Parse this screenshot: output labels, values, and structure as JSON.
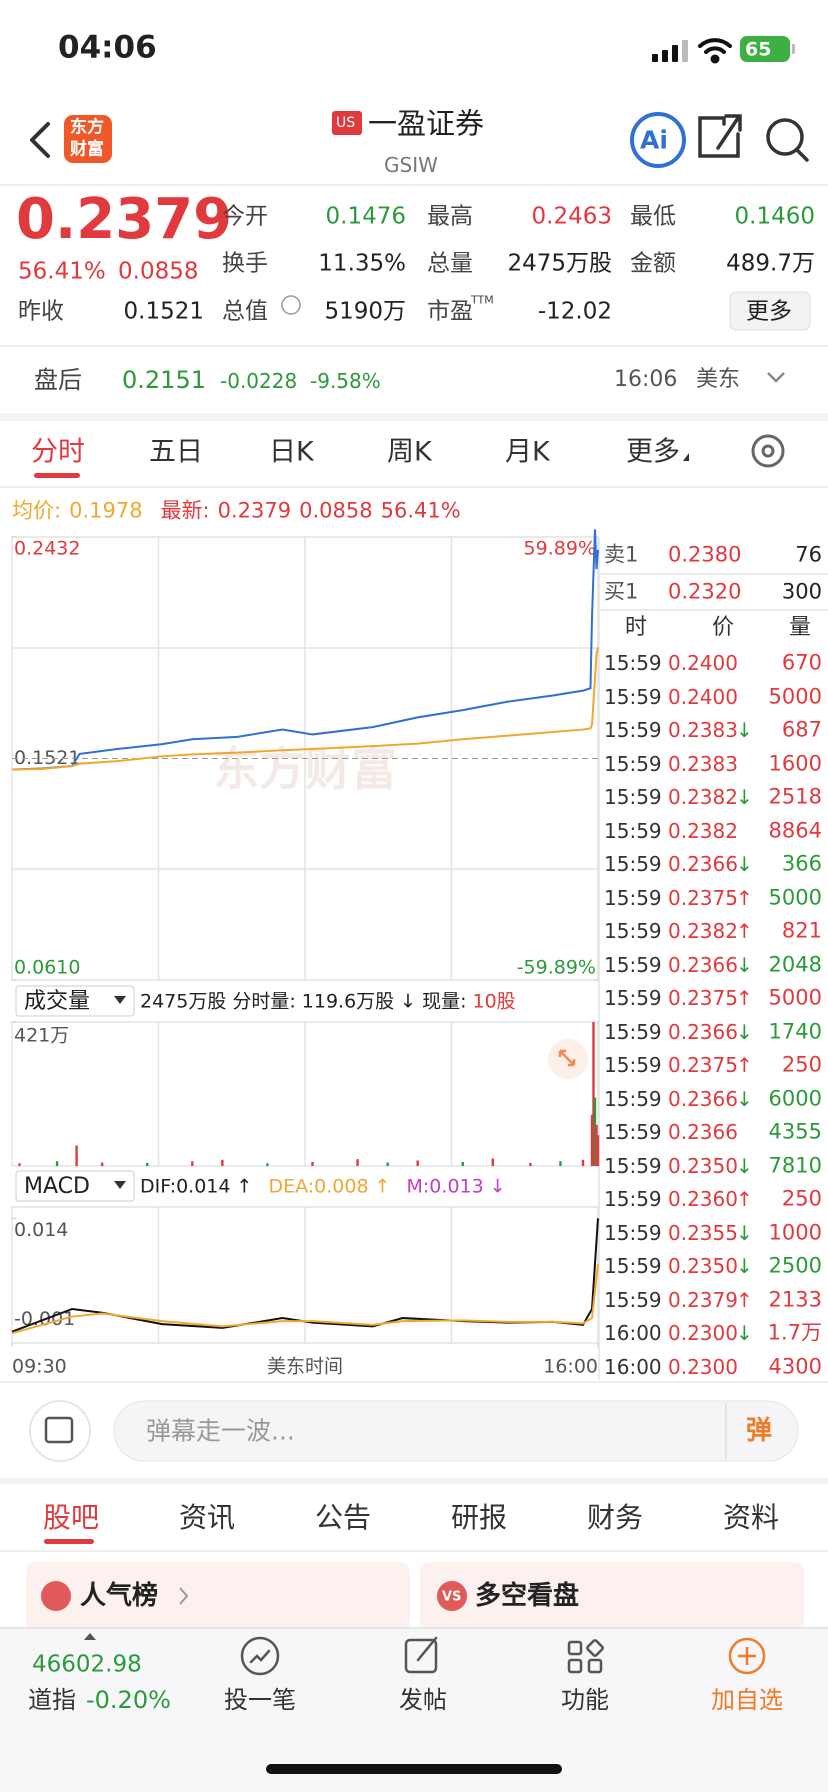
{
  "status_bar": {
    "time": "04:06",
    "battery": "65"
  },
  "header": {
    "logo": [
      "东方",
      "财富"
    ],
    "market": "US",
    "name": "一盈证券",
    "code": "GSIW",
    "ai": "Ai"
  },
  "quote": {
    "price": "0.2379",
    "change_pct": "56.41%",
    "change": "0.0858",
    "fields": [
      {
        "label": "今开",
        "value": "0.1476",
        "color": "#2a9a3a"
      },
      {
        "label": "最高",
        "value": "0.2463",
        "color": "#e0393e"
      },
      {
        "label": "最低",
        "value": "0.1460",
        "color": "#2a9a3a"
      },
      {
        "label": "换手",
        "value": "11.35%",
        "color": "#222222"
      },
      {
        "label": "总量",
        "value": "2475万股",
        "color": "#222222"
      },
      {
        "label": "金额",
        "value": "489.7万",
        "color": "#222222"
      },
      {
        "label": "昨收",
        "value": "0.1521",
        "color": "#222222"
      },
      {
        "label": "总值",
        "value": "5190万",
        "color": "#222222"
      },
      {
        "label": "市盈",
        "sup": "TTM",
        "value": "-12.02",
        "color": "#222222"
      }
    ],
    "more": "更多"
  },
  "after_hours": {
    "label": "盘后",
    "price": "0.2151",
    "change": "-0.0228",
    "pct": "-9.58%",
    "time": "16:06",
    "market": "美东"
  },
  "tabs": [
    "分时",
    "五日",
    "日K",
    "周K",
    "月K",
    "更多"
  ],
  "intraday_info": {
    "avg_label": "均价:",
    "avg": "0.1978",
    "last_label": "最新:",
    "last": "0.2379",
    "change": "0.0858",
    "pct": "56.41%"
  },
  "volume_bar": {
    "selector": "成交量",
    "total": "2475万股",
    "minute_label": "分时量:",
    "minute": "119.6万股",
    "arrow": "↓",
    "now_label": "现量:",
    "now": "10股"
  },
  "macd_bar": {
    "selector": "MACD",
    "dif": "DIF:0.014 ↑",
    "dea": "DEA:0.008 ↑",
    "m": "M:0.013 ↓"
  },
  "chart_data": [
    {
      "type": "line",
      "watermark": "东方财富",
      "x": [
        0,
        20,
        40,
        45,
        70,
        100,
        120,
        150,
        180,
        200,
        240,
        270,
        300,
        330,
        360,
        380,
        385,
        386,
        388,
        389,
        390
      ],
      "xlim": [
        0,
        390
      ],
      "ylim": [
        0.061,
        0.2432
      ],
      "yticks": [
        {
          "value": 0.2432,
          "label": "0.2432"
        },
        {
          "value": 0.1521,
          "label": "0.1521"
        },
        {
          "value": 0.061,
          "label": "0.0610"
        }
      ],
      "y2lim": [
        -59.89,
        59.89
      ],
      "y2ticks": [
        {
          "value": 59.89,
          "label": "59.89%"
        },
        {
          "value": -59.89,
          "label": "-59.89%"
        }
      ],
      "series": [
        {
          "color": "#2f6fd6",
          "values": [
            0.1476,
            0.148,
            0.149,
            0.154,
            0.156,
            0.158,
            0.16,
            0.161,
            0.164,
            0.162,
            0.165,
            0.169,
            0.172,
            0.1755,
            0.178,
            0.18,
            0.181,
            0.21,
            0.2463,
            0.23,
            0.2379
          ]
        },
        {
          "color": "#f0a830",
          "values": [
            0.1476,
            0.1478,
            0.149,
            0.15,
            0.151,
            0.153,
            0.1538,
            0.1545,
            0.1555,
            0.156,
            0.1572,
            0.1582,
            0.16,
            0.1615,
            0.163,
            0.164,
            0.1645,
            0.166,
            0.185,
            0.195,
            0.1978
          ]
        }
      ]
    },
    {
      "type": "bar",
      "x": [
        5,
        30,
        43,
        60,
        90,
        120,
        140,
        170,
        200,
        230,
        250,
        270,
        300,
        320,
        345,
        365,
        380,
        386,
        387,
        388,
        389,
        390
      ],
      "xlim": [
        0,
        390
      ],
      "values": [
        8,
        14,
        60,
        10,
        9,
        14,
        18,
        8,
        12,
        20,
        10,
        16,
        12,
        22,
        9,
        14,
        18,
        150,
        421,
        200,
        120,
        90
      ],
      "colors": [
        "#e0393e",
        "#2a9a3a",
        "#e0393e",
        "#e0393e",
        "#2a9a3a",
        "#e0393e",
        "#e0393e",
        "#2a9a3a",
        "#e0393e",
        "#e0393e",
        "#2a9a3a",
        "#e0393e",
        "#2a9a3a",
        "#e0393e",
        "#e0393e",
        "#2a9a3a",
        "#e0393e",
        "#e0393e",
        "#e0393e",
        "#2a9a3a",
        "#e0393e",
        "#e0393e"
      ],
      "ylim": [
        0,
        421
      ],
      "yticks": [
        {
          "value": 421,
          "label": "421万"
        }
      ]
    },
    {
      "type": "line",
      "x": [
        0,
        40,
        60,
        100,
        140,
        180,
        200,
        240,
        260,
        300,
        330,
        360,
        380,
        386,
        390
      ],
      "xlim": [
        0,
        390
      ],
      "xticks": [
        {
          "value": 0,
          "label": "09:30"
        },
        {
          "value": 390,
          "label": "16:00"
        }
      ],
      "xlabel": "美东时间",
      "ylim": [
        -0.0025,
        0.0155
      ],
      "yticks": [
        0.014,
        -0.001
      ],
      "series": [
        {
          "color": "#111111",
          "values": [
            -0.001,
            0.002,
            0.0015,
            0.0,
            -0.0005,
            0.0008,
            0.0002,
            -0.0003,
            0.0008,
            0.0004,
            0.0002,
            0.0003,
            -0.0001,
            0.002,
            0.014
          ]
        },
        {
          "color": "#f0a830",
          "values": [
            -0.0012,
            0.001,
            0.0014,
            0.0004,
            -0.0003,
            0.0004,
            0.0004,
            -0.0001,
            0.0004,
            0.0005,
            0.0003,
            0.0003,
            0.0001,
            0.0008,
            0.008
          ]
        }
      ]
    }
  ],
  "order_book": {
    "asks": [
      {
        "label": "卖1",
        "price": "0.2380",
        "qty": "76"
      }
    ],
    "bids": [
      {
        "label": "买1",
        "price": "0.2320",
        "qty": "300"
      }
    ],
    "headers": [
      "时",
      "价",
      "量"
    ],
    "trades": [
      {
        "time": "15:59",
        "price": "0.2400",
        "qty": "670",
        "color": "#e0393e"
      },
      {
        "time": "15:59",
        "price": "0.2400",
        "qty": "5000",
        "color": "#e0393e"
      },
      {
        "time": "15:59",
        "price": "0.2383",
        "arrow": "↓",
        "arrow_color": "#2a9a3a",
        "qty": "687",
        "color": "#e0393e"
      },
      {
        "time": "15:59",
        "price": "0.2383",
        "qty": "1600",
        "color": "#e0393e"
      },
      {
        "time": "15:59",
        "price": "0.2382",
        "arrow": "↓",
        "arrow_color": "#2a9a3a",
        "qty": "2518",
        "color": "#e0393e"
      },
      {
        "time": "15:59",
        "price": "0.2382",
        "qty": "8864",
        "color": "#e0393e"
      },
      {
        "time": "15:59",
        "price": "0.2366",
        "arrow": "↓",
        "arrow_color": "#2a9a3a",
        "qty": "366",
        "color": "#2a9a3a"
      },
      {
        "time": "15:59",
        "price": "0.2375",
        "arrow": "↑",
        "arrow_color": "#e0393e",
        "qty": "5000",
        "color": "#2a9a3a"
      },
      {
        "time": "15:59",
        "price": "0.2382",
        "arrow": "↑",
        "arrow_color": "#e0393e",
        "qty": "821",
        "color": "#e0393e"
      },
      {
        "time": "15:59",
        "price": "0.2366",
        "arrow": "↓",
        "arrow_color": "#2a9a3a",
        "qty": "2048",
        "color": "#2a9a3a"
      },
      {
        "time": "15:59",
        "price": "0.2375",
        "arrow": "↑",
        "arrow_color": "#e0393e",
        "qty": "5000",
        "color": "#e0393e"
      },
      {
        "time": "15:59",
        "price": "0.2366",
        "arrow": "↓",
        "arrow_color": "#2a9a3a",
        "qty": "1740",
        "color": "#2a9a3a"
      },
      {
        "time": "15:59",
        "price": "0.2375",
        "arrow": "↑",
        "arrow_color": "#e0393e",
        "qty": "250",
        "color": "#e0393e"
      },
      {
        "time": "15:59",
        "price": "0.2366",
        "arrow": "↓",
        "arrow_color": "#2a9a3a",
        "qty": "6000",
        "color": "#2a9a3a"
      },
      {
        "time": "15:59",
        "price": "0.2366",
        "qty": "4355",
        "color": "#2a9a3a"
      },
      {
        "time": "15:59",
        "price": "0.2350",
        "arrow": "↓",
        "arrow_color": "#2a9a3a",
        "qty": "7810",
        "color": "#2a9a3a"
      },
      {
        "time": "15:59",
        "price": "0.2360",
        "arrow": "↑",
        "arrow_color": "#e0393e",
        "qty": "250",
        "color": "#e0393e"
      },
      {
        "time": "15:59",
        "price": "0.2355",
        "arrow": "↓",
        "arrow_color": "#2a9a3a",
        "qty": "1000",
        "color": "#e0393e"
      },
      {
        "time": "15:59",
        "price": "0.2350",
        "arrow": "↓",
        "arrow_color": "#2a9a3a",
        "qty": "2500",
        "color": "#2a9a3a"
      },
      {
        "time": "15:59",
        "price": "0.2379",
        "arrow": "↑",
        "arrow_color": "#e0393e",
        "qty": "2133",
        "color": "#e0393e"
      },
      {
        "time": "16:00",
        "price": "0.2300",
        "arrow": "↓",
        "arrow_color": "#2a9a3a",
        "qty": "1.7万",
        "color": "#e0393e"
      },
      {
        "time": "16:00",
        "price": "0.2300",
        "qty": "4300",
        "color": "#e0393e"
      }
    ]
  },
  "comment": {
    "placeholder": "弹幕走一波...",
    "button": "弹"
  },
  "sub_tabs": [
    "股吧",
    "资讯",
    "公告",
    "研报",
    "财务",
    "资料"
  ],
  "cards": [
    {
      "title": "人气榜"
    },
    {
      "icon": "VS",
      "title": "多空看盘"
    }
  ],
  "bottom_nav": {
    "index": {
      "value": "46602.98",
      "name": "道指",
      "pct": "-0.20%"
    },
    "items": [
      "投一笔",
      "发帖",
      "功能",
      "加自选"
    ]
  }
}
